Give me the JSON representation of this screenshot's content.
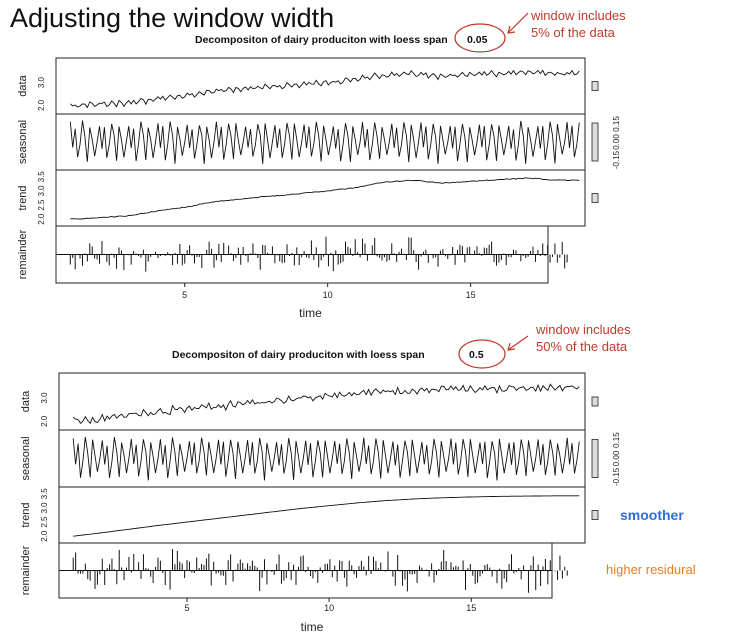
{
  "slide": {
    "title": "Adjusting the window width",
    "smoother_note": "smoother",
    "residual_note": "higher residural"
  },
  "chart_data": [
    {
      "type": "line",
      "title": "Decompositon of dairy produciton with loess span",
      "span_value": "0.05",
      "annotation_line1": "window includes",
      "annotation_line2": "5% of the data",
      "xlabel": "time",
      "x_ticks": [
        5,
        10,
        15
      ],
      "xlim": [
        0.5,
        19
      ],
      "panels": [
        {
          "name": "data",
          "yticks": [
            "2.0",
            "3.0"
          ],
          "ylim": [
            1.8,
            3.9
          ]
        },
        {
          "name": "seasonal",
          "yticks": [
            "-0.15",
            "0.00",
            "0.15"
          ],
          "ylim": [
            -0.2,
            0.2
          ]
        },
        {
          "name": "trend",
          "yticks": [
            "2.0",
            "2.5",
            "3.0",
            "3.5"
          ],
          "ylim": [
            1.9,
            3.6
          ]
        },
        {
          "name": "remainder",
          "yticks": [],
          "ylim": [
            -0.1,
            0.1
          ]
        }
      ],
      "trend_points": {
        "x": [
          1,
          2,
          3,
          4,
          5,
          6,
          7,
          8,
          9,
          10,
          11,
          12,
          13,
          14,
          15,
          16,
          17,
          18
        ],
        "y": [
          2.0,
          2.05,
          2.12,
          2.28,
          2.42,
          2.62,
          2.72,
          2.82,
          2.9,
          3.0,
          3.12,
          3.32,
          3.38,
          3.28,
          3.34,
          3.4,
          3.46,
          3.38
        ]
      },
      "remainder_amplitude": 0.06
    },
    {
      "type": "line",
      "title": "Decompositon of dairy produciton with loess span",
      "span_value": "0.5",
      "annotation_line1": "window includes",
      "annotation_line2": "50% of the data",
      "xlabel": "time",
      "x_ticks": [
        5,
        10,
        15
      ],
      "xlim": [
        0.5,
        19
      ],
      "panels": [
        {
          "name": "data",
          "yticks": [
            "2.0",
            "3.0"
          ],
          "ylim": [
            1.8,
            3.9
          ]
        },
        {
          "name": "seasonal",
          "yticks": [
            "-0.15",
            "0.00",
            "0.15"
          ],
          "ylim": [
            -0.2,
            0.2
          ]
        },
        {
          "name": "trend",
          "yticks": [
            "2.0",
            "2.5",
            "3.0",
            "3.5"
          ],
          "ylim": [
            1.9,
            3.6
          ]
        },
        {
          "name": "remainder",
          "yticks": [],
          "ylim": [
            -0.15,
            0.15
          ]
        }
      ],
      "trend_points": {
        "x": [
          1,
          2,
          3,
          4,
          5,
          6,
          7,
          8,
          9,
          10,
          11,
          12,
          13,
          14,
          15,
          16,
          17,
          18
        ],
        "y": [
          2.0,
          2.12,
          2.25,
          2.38,
          2.5,
          2.62,
          2.74,
          2.86,
          2.98,
          3.08,
          3.18,
          3.26,
          3.32,
          3.36,
          3.39,
          3.41,
          3.42,
          3.43
        ]
      },
      "remainder_amplitude": 0.11
    }
  ]
}
